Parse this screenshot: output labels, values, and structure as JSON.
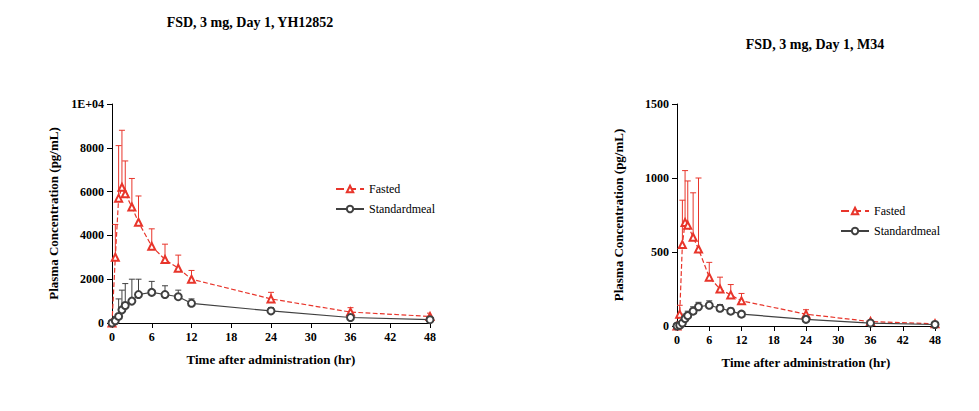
{
  "chart_data": [
    {
      "type": "line",
      "title": "FSD, 3 mg, Day 1, YH12852",
      "x_label": "Time after administration (hr)",
      "y_label": "Plasma Concentration (pg/mL)",
      "x": [
        0,
        0.5,
        1,
        1.5,
        2,
        3,
        4,
        6,
        8,
        10,
        12,
        24,
        36,
        48
      ],
      "xlim": [
        0,
        48
      ],
      "xticks": [
        0,
        6,
        12,
        18,
        24,
        30,
        36,
        42,
        48
      ],
      "ylim": [
        0,
        10000
      ],
      "yticks": [
        0,
        2000,
        4000,
        6000,
        8000,
        {
          "value": 10000,
          "label": "1E+04"
        }
      ],
      "grid": false,
      "legend": "right",
      "series": [
        {
          "name": "Fasted",
          "color": "#e8352b",
          "marker": "triangle",
          "line_style": "dashed",
          "values": [
            0,
            3000,
            5700,
            6200,
            5900,
            5300,
            4600,
            3500,
            2900,
            2500,
            2000,
            1100,
            500,
            300
          ],
          "errors": [
            0,
            1500,
            2400,
            2600,
            1500,
            1300,
            1200,
            800,
            700,
            600,
            400,
            300,
            200,
            150
          ]
        },
        {
          "name": "Standardmeal",
          "color": "#404040",
          "marker": "circle",
          "line_style": "solid",
          "values": [
            0,
            100,
            300,
            600,
            800,
            1000,
            1300,
            1400,
            1300,
            1200,
            900,
            550,
            250,
            150
          ],
          "errors": [
            0,
            200,
            800,
            900,
            1000,
            1000,
            700,
            500,
            400,
            300,
            200,
            150,
            100,
            50
          ]
        }
      ]
    },
    {
      "type": "line",
      "title": "FSD, 3 mg, Day 1, M34",
      "x_label": "Time after administration (hr)",
      "y_label": "Plasma Concentration (pg/mL)",
      "x": [
        0,
        0.5,
        1,
        1.5,
        2,
        3,
        4,
        6,
        8,
        10,
        12,
        24,
        36,
        48
      ],
      "xlim": [
        0,
        48
      ],
      "xticks": [
        0,
        6,
        12,
        18,
        24,
        30,
        36,
        42,
        48
      ],
      "ylim": [
        0,
        1500
      ],
      "yticks": [
        0,
        500,
        1000,
        1500
      ],
      "grid": false,
      "legend": "right",
      "series": [
        {
          "name": "Fasted",
          "color": "#e8352b",
          "marker": "triangle",
          "line_style": "dashed",
          "values": [
            0,
            80,
            550,
            700,
            680,
            600,
            520,
            330,
            250,
            210,
            170,
            80,
            30,
            15
          ],
          "errors": [
            0,
            60,
            300,
            350,
            300,
            300,
            480,
            100,
            80,
            70,
            50,
            30,
            10,
            5
          ]
        },
        {
          "name": "Standardmeal",
          "color": "#404040",
          "marker": "circle",
          "line_style": "solid",
          "values": [
            0,
            5,
            20,
            50,
            70,
            100,
            130,
            140,
            120,
            100,
            80,
            45,
            20,
            10
          ],
          "errors": [
            0,
            5,
            15,
            30,
            30,
            30,
            30,
            30,
            25,
            20,
            15,
            10,
            5,
            3
          ]
        }
      ]
    }
  ]
}
